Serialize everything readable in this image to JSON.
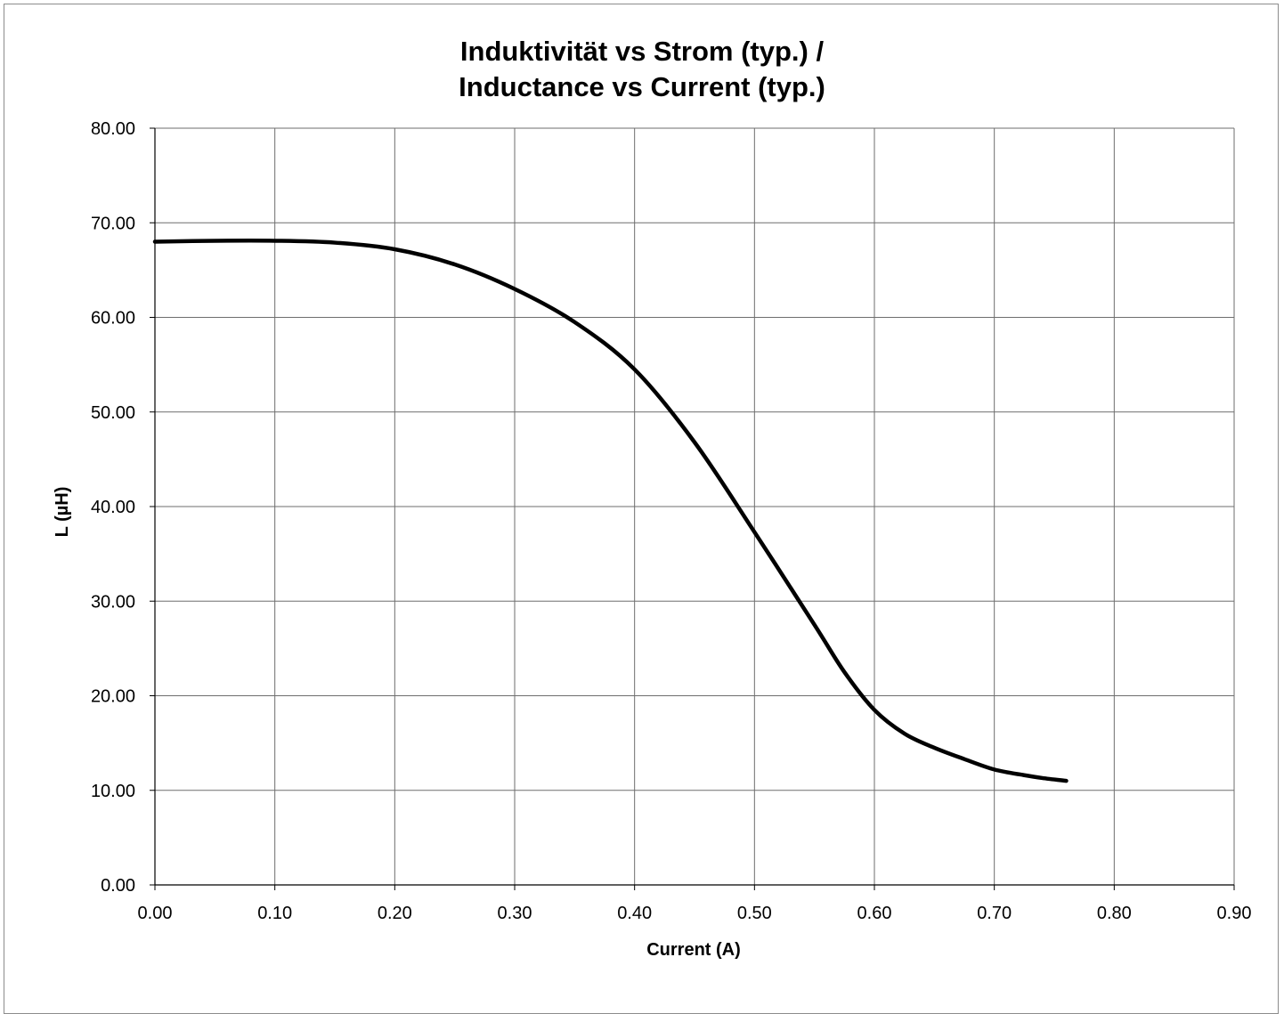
{
  "chart_data": {
    "type": "line",
    "title": [
      "Induktivität vs Strom (typ.) /",
      "Inductance vs Current (typ.)"
    ],
    "xlabel": "Current (A)",
    "ylabel": "L (µH)",
    "xlim": [
      0,
      0.9
    ],
    "ylim": [
      0,
      80
    ],
    "x_ticks": [
      "0.00",
      "0.10",
      "0.20",
      "0.30",
      "0.40",
      "0.50",
      "0.60",
      "0.70",
      "0.80",
      "0.90"
    ],
    "y_ticks": [
      "0.00",
      "10.00",
      "20.00",
      "30.00",
      "40.00",
      "50.00",
      "60.00",
      "70.00",
      "80.00"
    ],
    "grid": true,
    "legend": "none",
    "series": [
      {
        "color": "#000000",
        "x": [
          0.0,
          0.05,
          0.1,
          0.15,
          0.2,
          0.25,
          0.3,
          0.35,
          0.4,
          0.45,
          0.5,
          0.55,
          0.575,
          0.6,
          0.625,
          0.65,
          0.675,
          0.7,
          0.725,
          0.74,
          0.76
        ],
        "y": [
          68.0,
          68.1,
          68.1,
          67.9,
          67.2,
          65.6,
          63.0,
          59.5,
          54.5,
          46.8,
          37.3,
          27.5,
          22.5,
          18.5,
          16.0,
          14.5,
          13.3,
          12.2,
          11.6,
          11.3,
          11.0
        ]
      }
    ]
  }
}
